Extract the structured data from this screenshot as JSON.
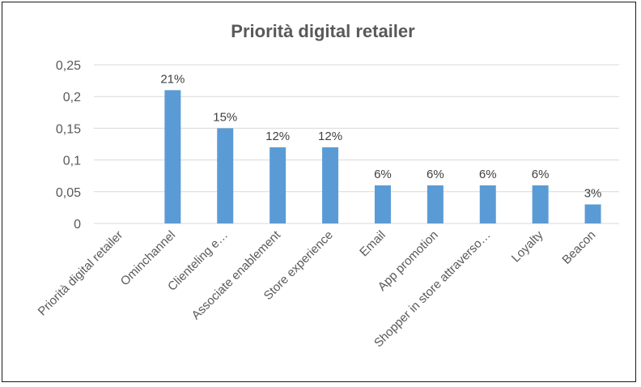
{
  "chart_data": {
    "type": "bar",
    "title": "Priorità digital retailer",
    "categories": [
      "Priorità digital retailer",
      "Ominchannel",
      "Clienteling e…",
      "Associate enablement",
      "Store experience",
      "Email",
      "App promotion",
      "Shopper in store attraverso…",
      "Loyalty",
      "Beacon"
    ],
    "values": [
      null,
      0.21,
      0.15,
      0.12,
      0.12,
      0.06,
      0.06,
      0.06,
      0.06,
      0.03
    ],
    "data_labels": [
      "",
      "21%",
      "15%",
      "12%",
      "12%",
      "6%",
      "6%",
      "6%",
      "6%",
      "3%"
    ],
    "ylim": [
      0,
      0.25
    ],
    "yticks": [
      0,
      0.05,
      0.1,
      0.15,
      0.2,
      0.25
    ],
    "ytick_labels": [
      "0",
      "0,05",
      "0,1",
      "0,15",
      "0,2",
      "0,25"
    ],
    "xlabel": "",
    "ylabel": "",
    "grid": true,
    "legend": "none",
    "bar_color": "#5b9bd5",
    "grid_color": "#d9d9d9",
    "text_color": "#595959"
  }
}
